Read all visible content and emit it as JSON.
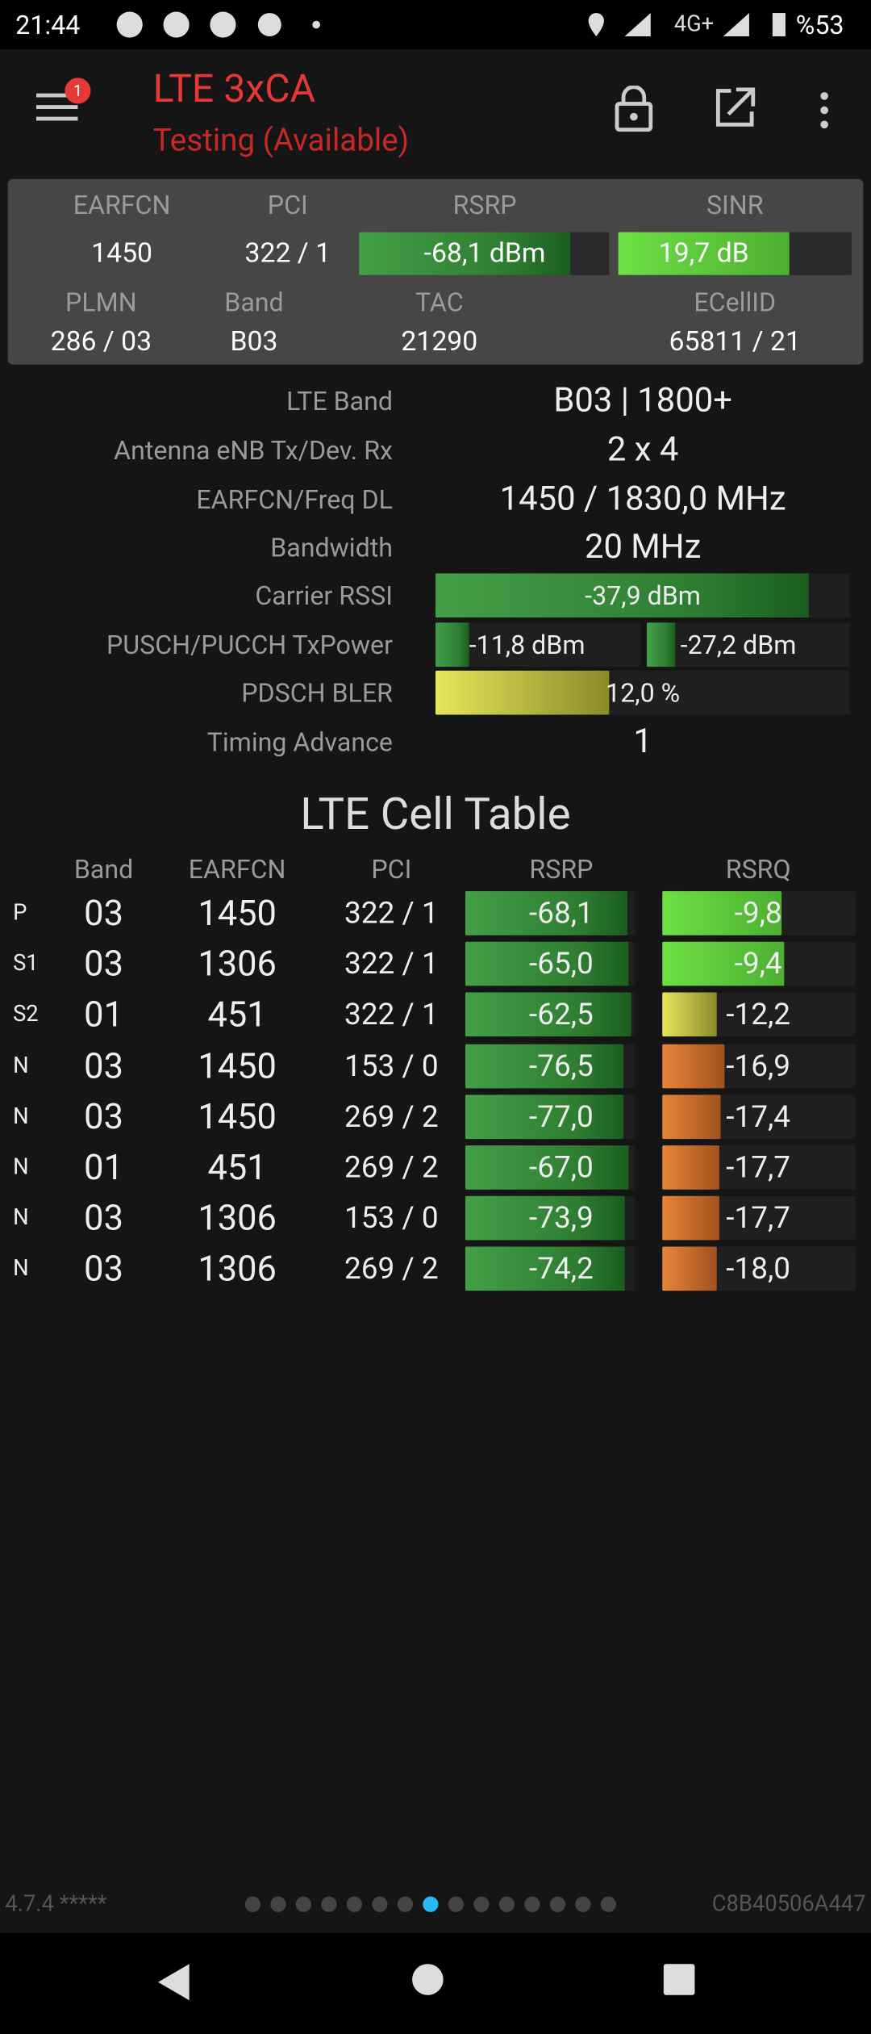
{
  "status_bar": {
    "time": "21:44",
    "network": "4G+",
    "battery": "%53"
  },
  "header": {
    "title": "LTE 3xCA",
    "subtitle": "Testing (Available)",
    "badge": "1"
  },
  "summary": {
    "labels": [
      "EARFCN",
      "PCI",
      "RSRP",
      "SINR",
      "PLMN",
      "Band",
      "TAC",
      "ECellID"
    ],
    "values": [
      "1450",
      "322 / 1",
      "-68,1 dBm",
      "19,7 dB",
      "286 / 03",
      "B03",
      "21290",
      "65811 / 21"
    ]
  },
  "details": [
    {
      "label": "LTE Band",
      "value": "B03 | 1800+"
    },
    {
      "label": "Antenna eNB Tx/Dev. Rx",
      "value": "2 x 4"
    },
    {
      "label": "EARFCN/Freq DL",
      "value": "1450 / 1830,0 MHz"
    },
    {
      "label": "Bandwidth",
      "value": "20 MHz"
    },
    {
      "label": "Carrier RSSI",
      "value": "-37,9 dBm"
    },
    {
      "label": "PUSCH/PUCCH TxPower",
      "value": "-11,8 dBm",
      "value2": "-27,2 dBm"
    },
    {
      "label": "PDSCH BLER",
      "value": "12,0 %"
    },
    {
      "label": "Timing Advance",
      "value": "1"
    }
  ],
  "cell_table": {
    "title": "LTE Cell Table",
    "headers": [
      "Band",
      "EARFCN",
      "PCI",
      "RSRP",
      "RSRQ"
    ],
    "rows": [
      [
        "P",
        "03",
        "1450",
        "322 / 1",
        "-68,1",
        "-9,8"
      ],
      [
        "S1",
        "03",
        "1306",
        "322 / 1",
        "-65,0",
        "-9,4"
      ],
      [
        "S2",
        "01",
        "451",
        "322 / 1",
        "-62,5",
        "-12,2"
      ],
      [
        "N",
        "03",
        "1450",
        "153 / 0",
        "-76,5",
        "-16,9"
      ],
      [
        "N",
        "03",
        "1450",
        "269 / 2",
        "-77,0",
        "-17,4"
      ],
      [
        "N",
        "01",
        "451",
        "269 / 2",
        "-67,0",
        "-17,7"
      ],
      [
        "N",
        "03",
        "1306",
        "153 / 0",
        "-73,9",
        "-17,7"
      ],
      [
        "N",
        "03",
        "1306",
        "269 / 2",
        "-74,2",
        "-18,0"
      ]
    ]
  },
  "footer": {
    "version": "4.7.4 *****",
    "device_id": "C8B40506A447"
  }
}
